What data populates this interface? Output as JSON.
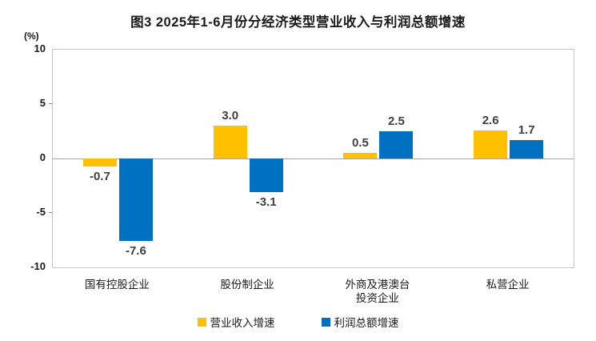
{
  "chart_data": {
    "type": "bar",
    "title": "图3 2025年1-6月份分经济类型营业收入与利润总额增速",
    "unit": "(%)",
    "categories": [
      "国有控股企业",
      "股份制企业",
      "外商及港澳台\n投资企业",
      "私营企业"
    ],
    "series": [
      {
        "name": "营业收入增速",
        "color": "#FFC000",
        "values": [
          -0.7,
          3.0,
          0.5,
          2.6
        ]
      },
      {
        "name": "利润总额增速",
        "color": "#0070C0",
        "values": [
          -7.6,
          -3.1,
          2.5,
          1.7
        ]
      }
    ],
    "ylim": [
      -10,
      10
    ],
    "yticks": [
      10,
      5,
      0,
      -5,
      -10
    ],
    "grid": false,
    "legend_position": "bottom",
    "value_label_decimals": 1
  }
}
